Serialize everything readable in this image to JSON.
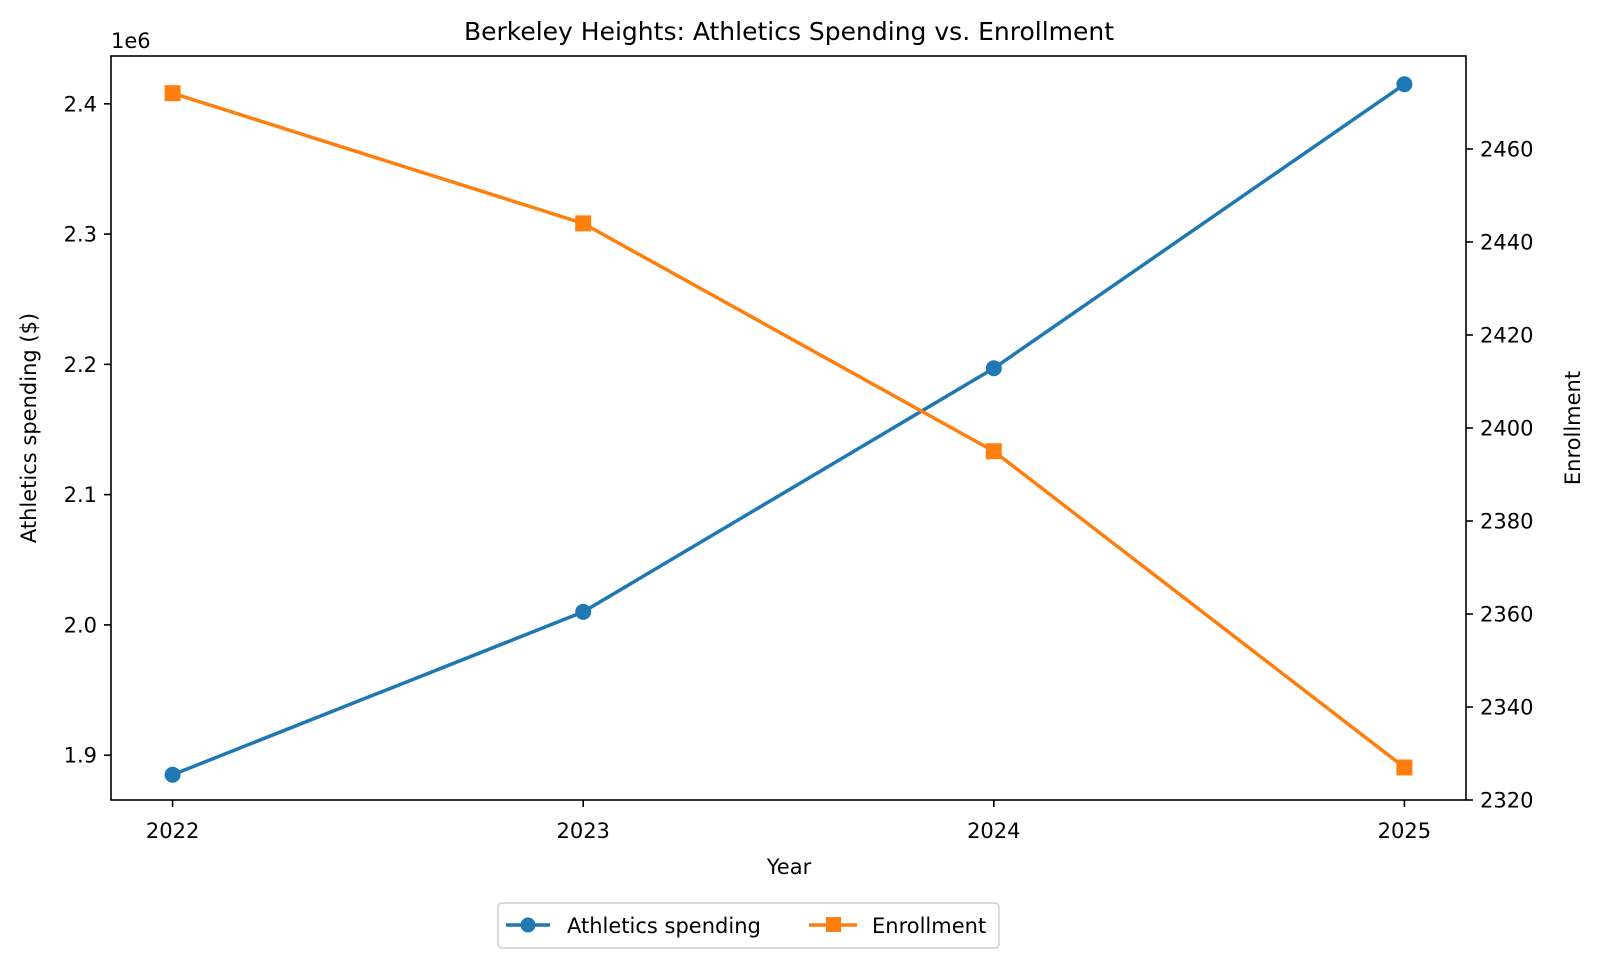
{
  "chart_data": {
    "type": "line",
    "title": "Berkeley Heights: Athletics Spending vs. Enrollment",
    "xlabel": "Year",
    "ylabel": "Athletics spending ($)",
    "y2label": "Enrollment",
    "x": [
      2022,
      2023,
      2024,
      2025
    ],
    "x_tick_labels": [
      "2022",
      "2023",
      "2024",
      "2025"
    ],
    "y_offset_label": "1e6",
    "y_ticks": [
      1.9,
      2.0,
      2.1,
      2.2,
      2.3,
      2.4
    ],
    "y_tick_labels": [
      "1.9",
      "2.0",
      "2.1",
      "2.2",
      "2.3",
      "2.4"
    ],
    "ylim": [
      1.8656,
      2.4367
    ],
    "y2_ticks": [
      2320,
      2340,
      2360,
      2380,
      2400,
      2420,
      2440,
      2460
    ],
    "y2_tick_labels": [
      "2320",
      "2340",
      "2360",
      "2380",
      "2400",
      "2420",
      "2440",
      "2460"
    ],
    "y2lim": [
      2320,
      2480
    ],
    "xlim": [
      2021.85,
      2025.15
    ],
    "grid": false,
    "legend_placement": "bottom-center (below plot)",
    "series": [
      {
        "name": "Athletics spending",
        "axis": "left",
        "unit_scale": 1000000,
        "values": [
          1.885,
          2.01,
          2.197,
          2.415
        ],
        "color": "#1f77b4",
        "marker": "circle"
      },
      {
        "name": "Enrollment",
        "axis": "right",
        "values": [
          2472,
          2444,
          2395,
          2327
        ],
        "color": "#ff7f0e",
        "marker": "square"
      }
    ]
  }
}
